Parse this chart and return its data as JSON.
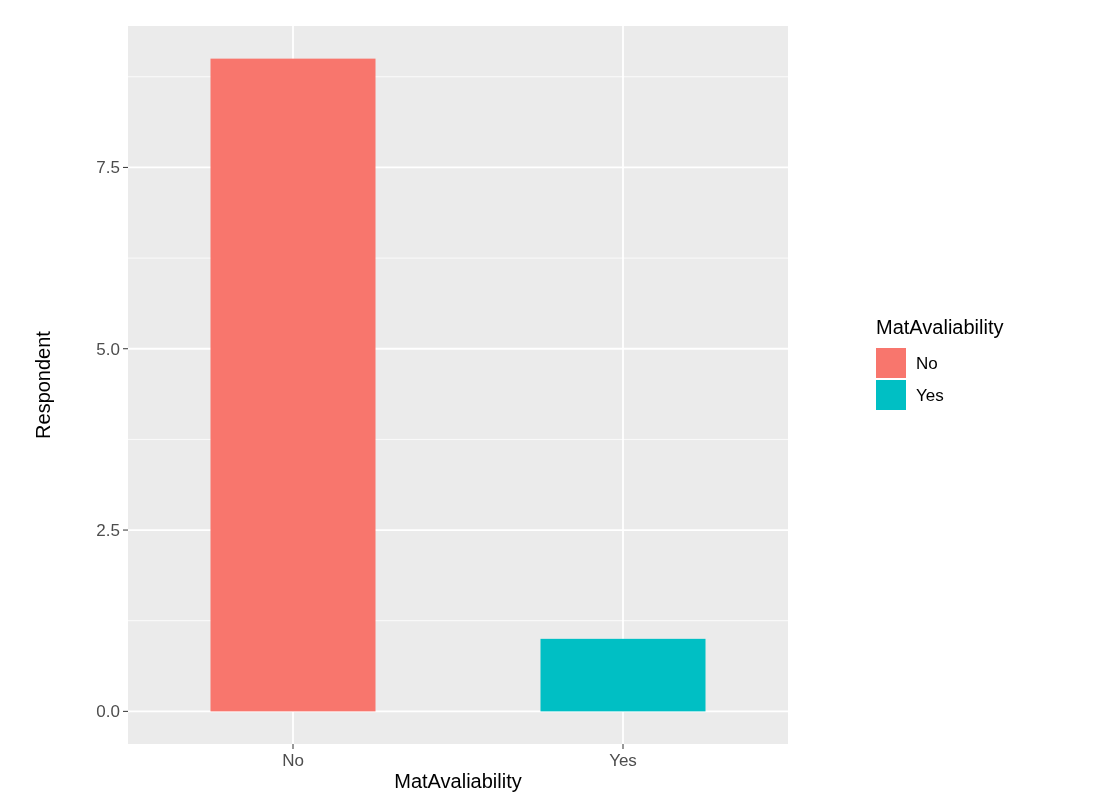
{
  "chart_data": {
    "type": "bar",
    "xlabel": "MatAvaliability",
    "ylabel": "Respondent",
    "legend_title": "MatAvaliability",
    "categories": [
      "No",
      "Yes"
    ],
    "series": [
      {
        "name": "No",
        "color": "#f8766d",
        "values": [
          9,
          null
        ]
      },
      {
        "name": "Yes",
        "color": "#00bfc4",
        "values": [
          null,
          1
        ]
      }
    ],
    "ylim": [
      -0.45,
      9.45
    ],
    "yticks": [
      {
        "value": 0,
        "label": "0.0"
      },
      {
        "value": 1.25,
        "label": null
      },
      {
        "value": 2.5,
        "label": "2.5"
      },
      {
        "value": 3.75,
        "label": null
      },
      {
        "value": 5,
        "label": "5.0"
      },
      {
        "value": 6.25,
        "label": null
      },
      {
        "value": 7.5,
        "label": "7.5"
      },
      {
        "value": 8.75,
        "label": null
      }
    ],
    "grid": true,
    "legend": "right"
  }
}
